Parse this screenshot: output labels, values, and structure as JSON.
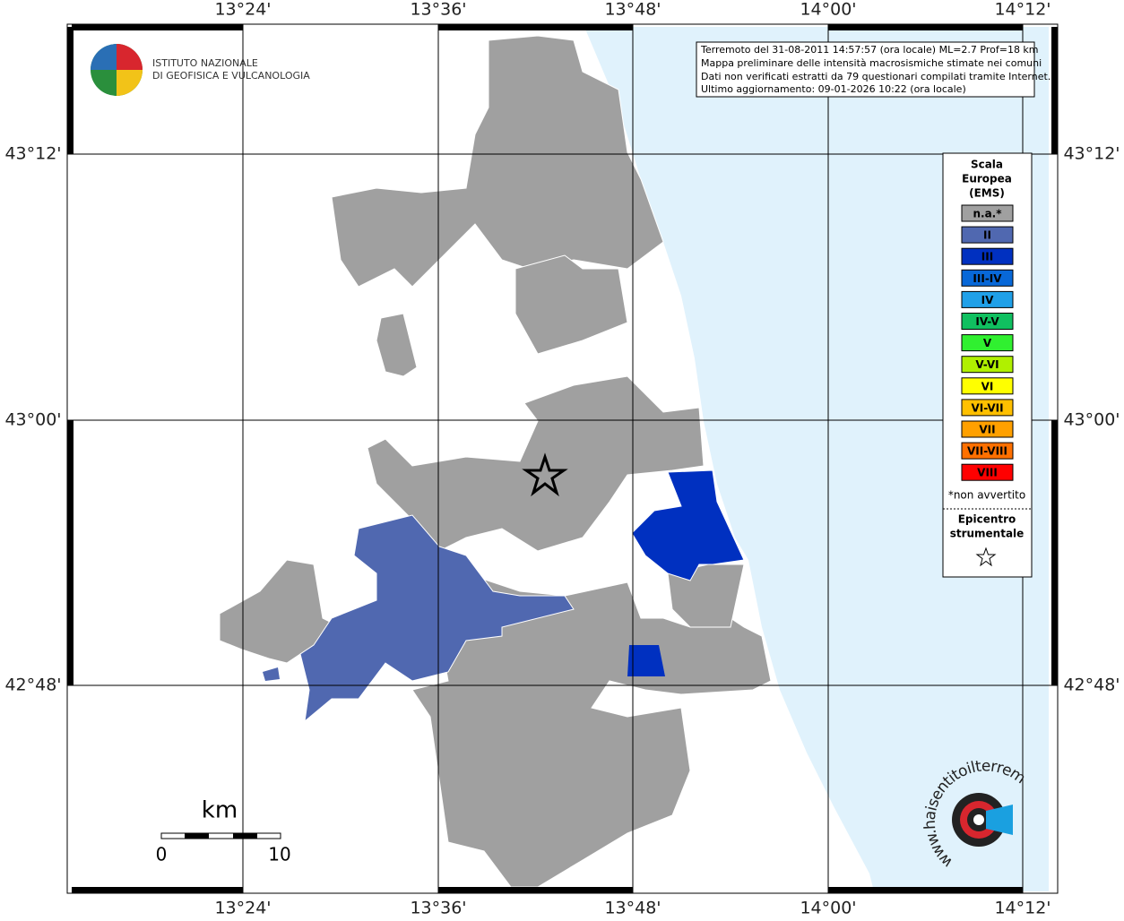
{
  "axes": {
    "lon_labels": [
      "13°24'",
      "13°36'",
      "13°48'",
      "14°00'",
      "14°12'"
    ],
    "lat_labels": [
      "43°12'",
      "43°00'",
      "42°48'"
    ]
  },
  "logo": {
    "lines": [
      "ISTITUTO NAZIONALE",
      "DI GEOFISICA E VULCANOLOGIA"
    ]
  },
  "info_box": {
    "lines": [
      "Terremoto del 31-08-2011 14:57:57 (ora locale) ML=2.7 Prof=18 km",
      "Mappa preliminare delle intensità macrosismiche stimate nei comuni",
      "Dati non verificati estratti da 79 questionari compilati tramite Internet.",
      "Ultimo aggiornamento: 09-01-2026 10:22 (ora locale)"
    ]
  },
  "legend": {
    "title": [
      "Scala",
      "Europea",
      "(EMS)"
    ],
    "items": [
      {
        "label": "n.a.*",
        "color": "#a0a0a0"
      },
      {
        "label": "II",
        "color": "#5068b0"
      },
      {
        "label": "III",
        "color": "#0030c0"
      },
      {
        "label": "III-IV",
        "color": "#0868d8"
      },
      {
        "label": "IV",
        "color": "#20a0e8"
      },
      {
        "label": "IV-V",
        "color": "#10c060"
      },
      {
        "label": "V",
        "color": "#30f030"
      },
      {
        "label": "V-VI",
        "color": "#b0f000"
      },
      {
        "label": "VI",
        "color": "#ffff00"
      },
      {
        "label": "VI-VII",
        "color": "#ffc000"
      },
      {
        "label": "VII",
        "color": "#ffa000"
      },
      {
        "label": "VII-VIII",
        "color": "#ff7000"
      },
      {
        "label": "VIII",
        "color": "#ff0000"
      }
    ],
    "footnote": "*non avvertito",
    "epicenter_title": [
      "Epicentro",
      "strumentale"
    ]
  },
  "scale_bar": {
    "unit": "km",
    "labels": [
      "0",
      "10"
    ]
  },
  "watermark": {
    "text": "www.haisentitoilterremoto.it"
  }
}
